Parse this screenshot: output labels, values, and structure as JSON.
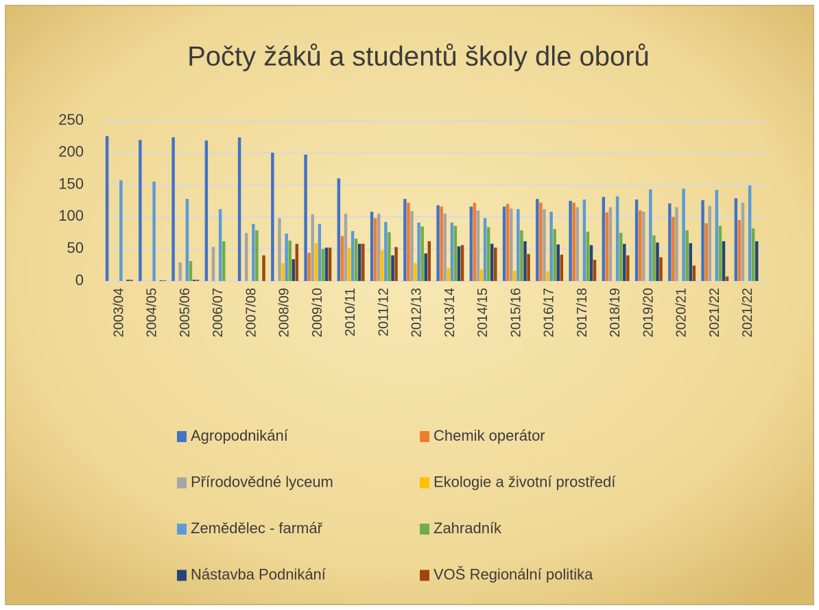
{
  "chart_data": {
    "type": "bar",
    "title": "Počty žáků a studentů školy dle oborů",
    "categories": [
      "2003/04",
      "2004/05",
      "2005/06",
      "2006/07",
      "2007/08",
      "2008/09",
      "2009/10",
      "2010/11",
      "2011/12",
      "2012/13",
      "2013/14",
      "2014/15",
      "2015/16",
      "2016/17",
      "2017/18",
      "2018/19",
      "2019/20",
      "2020/21",
      "2021/22",
      "2021/22"
    ],
    "series": [
      {
        "name": "Agropodnikání",
        "color": "#4472c4",
        "values": [
          226,
          220,
          224,
          219,
          224,
          200,
          197,
          160,
          108,
          128,
          118,
          116,
          116,
          128,
          125,
          131,
          127,
          121,
          126,
          129
        ]
      },
      {
        "name": "Chemik operátor",
        "color": "#ed7d31",
        "values": [
          0,
          0,
          0,
          0,
          0,
          0,
          44,
          70,
          98,
          122,
          116,
          122,
          120,
          122,
          122,
          107,
          110,
          100,
          90,
          95
        ]
      },
      {
        "name": "Přírodovědné lyceum",
        "color": "#a5a5a5",
        "values": [
          0,
          0,
          29,
          53,
          75,
          98,
          104,
          105,
          105,
          109,
          105,
          110,
          113,
          112,
          115,
          115,
          108,
          115,
          117,
          122
        ]
      },
      {
        "name": "Ekologie a životní prostředí",
        "color": "#ffc000",
        "values": [
          0,
          0,
          0,
          0,
          0,
          28,
          59,
          52,
          48,
          28,
          20,
          18,
          16,
          15,
          0,
          0,
          0,
          0,
          0,
          0
        ]
      },
      {
        "name": "Zemědělec - farmář",
        "color": "#5b9bd5",
        "values": [
          157,
          155,
          128,
          112,
          89,
          74,
          89,
          78,
          92,
          91,
          91,
          98,
          112,
          108,
          127,
          132,
          143,
          144,
          142,
          149
        ]
      },
      {
        "name": "Zahradník",
        "color": "#70ad47",
        "values": [
          0,
          0,
          31,
          62,
          79,
          63,
          50,
          66,
          76,
          85,
          86,
          84,
          79,
          81,
          77,
          75,
          71,
          79,
          86,
          82
        ]
      },
      {
        "name": "Nástavba Podnikání",
        "color": "#264478",
        "values": [
          2,
          1,
          2,
          0,
          0,
          34,
          52,
          58,
          40,
          43,
          54,
          58,
          62,
          57,
          56,
          58,
          60,
          59,
          62,
          62
        ]
      },
      {
        "name": "VOŠ Regionální politika",
        "color": "#9e480e",
        "values": [
          2,
          1,
          2,
          0,
          40,
          58,
          52,
          58,
          53,
          62,
          56,
          52,
          42,
          41,
          33,
          40,
          37,
          24,
          7,
          0
        ]
      }
    ],
    "ylim": [
      0,
      250
    ],
    "yticks": [
      0,
      50,
      100,
      150,
      200,
      250
    ],
    "grid": true
  }
}
